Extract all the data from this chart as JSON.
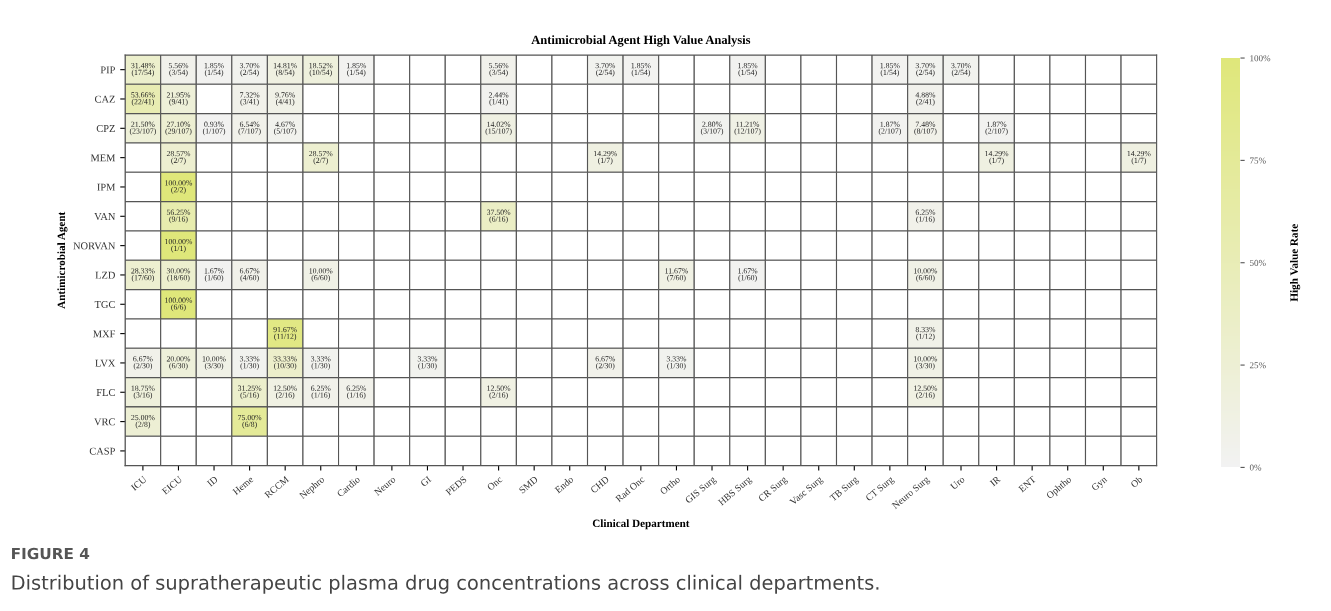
{
  "chart_data": {
    "type": "heatmap",
    "title": "Antimicrobial Agent High Value Analysis",
    "xlabel": "Clinical Department",
    "ylabel": "Antimicrobial Agent",
    "clabel": "High Value Rate",
    "categories": [
      "ICU",
      "EICU",
      "ID",
      "Heme",
      "RCCM",
      "Nephro",
      "Cardio",
      "Neuro",
      "GI",
      "PEDS",
      "Onc",
      "SMD",
      "Endo",
      "CHD",
      "Rad Onc",
      "Ortho",
      "GIS Surg",
      "HBS Surg",
      "CR Surg",
      "Vasc Surg",
      "TB Surg",
      "CT Surg",
      "Neuro Surg",
      "Uro",
      "IR",
      "ENT",
      "Ophtho",
      "Gyn",
      "Ob"
    ],
    "y_categories": [
      "PIP",
      "CAZ",
      "CPZ",
      "MEM",
      "IPM",
      "VAN",
      "NORVAN",
      "LZD",
      "TGC",
      "MXF",
      "LVX",
      "FLC",
      "VRC",
      "CASP"
    ],
    "cells": [
      [
        31.48,
        5.56,
        1.85,
        3.7,
        14.81,
        18.52,
        1.85,
        null,
        null,
        null,
        5.56,
        null,
        null,
        3.7,
        1.85,
        null,
        null,
        1.85,
        null,
        null,
        null,
        1.85,
        3.7,
        3.7,
        null,
        null,
        null,
        null,
        null
      ],
      [
        53.66,
        21.95,
        null,
        7.32,
        9.76,
        null,
        null,
        null,
        null,
        null,
        2.44,
        null,
        null,
        null,
        null,
        null,
        null,
        null,
        null,
        null,
        null,
        null,
        4.88,
        null,
        null,
        null,
        null,
        null,
        null
      ],
      [
        21.5,
        27.1,
        0.93,
        6.54,
        4.67,
        null,
        null,
        null,
        null,
        null,
        14.02,
        null,
        null,
        null,
        null,
        null,
        2.8,
        11.21,
        null,
        null,
        null,
        1.87,
        7.48,
        null,
        1.87,
        null,
        null,
        null,
        null
      ],
      [
        null,
        28.57,
        null,
        null,
        null,
        28.57,
        null,
        null,
        null,
        null,
        null,
        null,
        null,
        14.29,
        null,
        null,
        null,
        null,
        null,
        null,
        null,
        null,
        null,
        null,
        14.29,
        null,
        null,
        null,
        14.29
      ],
      [
        null,
        100.0,
        null,
        null,
        null,
        null,
        null,
        null,
        null,
        null,
        null,
        null,
        null,
        null,
        null,
        null,
        null,
        null,
        null,
        null,
        null,
        null,
        null,
        null,
        null,
        null,
        null,
        null,
        null
      ],
      [
        null,
        56.25,
        null,
        null,
        null,
        null,
        null,
        null,
        null,
        null,
        37.5,
        null,
        null,
        null,
        null,
        null,
        null,
        null,
        null,
        null,
        null,
        null,
        6.25,
        null,
        null,
        null,
        null,
        null,
        null
      ],
      [
        null,
        100.0,
        null,
        null,
        null,
        null,
        null,
        null,
        null,
        null,
        null,
        null,
        null,
        null,
        null,
        null,
        null,
        null,
        null,
        null,
        null,
        null,
        null,
        null,
        null,
        null,
        null,
        null,
        null
      ],
      [
        28.33,
        30.0,
        1.67,
        6.67,
        null,
        10.0,
        null,
        null,
        null,
        null,
        null,
        null,
        null,
        null,
        null,
        11.67,
        null,
        1.67,
        null,
        null,
        null,
        null,
        10.0,
        null,
        null,
        null,
        null,
        null,
        null
      ],
      [
        null,
        100.0,
        null,
        null,
        null,
        null,
        null,
        null,
        null,
        null,
        null,
        null,
        null,
        null,
        null,
        null,
        null,
        null,
        null,
        null,
        null,
        null,
        null,
        null,
        null,
        null,
        null,
        null,
        null
      ],
      [
        null,
        null,
        null,
        null,
        91.67,
        null,
        null,
        null,
        null,
        null,
        null,
        null,
        null,
        null,
        null,
        null,
        null,
        null,
        null,
        null,
        null,
        null,
        8.33,
        null,
        null,
        null,
        null,
        null,
        null
      ],
      [
        6.67,
        20.0,
        10.0,
        3.33,
        33.33,
        3.33,
        null,
        null,
        3.33,
        null,
        null,
        null,
        null,
        6.67,
        null,
        3.33,
        null,
        null,
        null,
        null,
        null,
        null,
        10.0,
        null,
        null,
        null,
        null,
        null,
        null
      ],
      [
        18.75,
        null,
        null,
        31.25,
        12.5,
        6.25,
        6.25,
        null,
        null,
        null,
        12.5,
        null,
        null,
        null,
        null,
        null,
        null,
        null,
        null,
        null,
        null,
        null,
        12.5,
        null,
        null,
        null,
        null,
        null,
        null
      ],
      [
        25.0,
        null,
        null,
        75.0,
        null,
        null,
        null,
        null,
        null,
        null,
        null,
        null,
        null,
        null,
        null,
        null,
        null,
        null,
        null,
        null,
        null,
        null,
        null,
        null,
        null,
        null,
        null,
        null,
        null
      ],
      [
        null,
        null,
        null,
        null,
        null,
        null,
        null,
        null,
        null,
        null,
        null,
        null,
        null,
        null,
        null,
        null,
        null,
        null,
        null,
        null,
        null,
        null,
        null,
        null,
        null,
        null,
        null,
        null,
        null
      ]
    ],
    "cell_labels": [
      [
        "31.48%\n(17/54)",
        "5.56%\n(3/54)",
        "1.85%\n(1/54)",
        "3.70%\n(2/54)",
        "14.81%\n(8/54)",
        "18.52%\n(10/54)",
        "1.85%\n(1/54)",
        null,
        null,
        null,
        "5.56%\n(3/54)",
        null,
        null,
        "3.70%\n(2/54)",
        "1.85%\n(1/54)",
        null,
        null,
        "1.85%\n(1/54)",
        null,
        null,
        null,
        "1.85%\n(1/54)",
        "3.70%\n(2/54)",
        "3.70%\n(2/54)",
        null,
        null,
        null,
        null,
        null
      ],
      [
        "53.66%\n(22/41)",
        "21.95%\n(9/41)",
        null,
        "7.32%\n(3/41)",
        "9.76%\n(4/41)",
        null,
        null,
        null,
        null,
        null,
        "2.44%\n(1/41)",
        null,
        null,
        null,
        null,
        null,
        null,
        null,
        null,
        null,
        null,
        null,
        "4.88%\n(2/41)",
        null,
        null,
        null,
        null,
        null,
        null
      ],
      [
        "21.50%\n(23/107)",
        "27.10%\n(29/107)",
        "0.93%\n(1/107)",
        "6.54%\n(7/107)",
        "4.67%\n(5/107)",
        null,
        null,
        null,
        null,
        null,
        "14.02%\n(15/107)",
        null,
        null,
        null,
        null,
        null,
        "2.80%\n(3/107)",
        "11.21%\n(12/107)",
        null,
        null,
        null,
        "1.87%\n(2/107)",
        "7.48%\n(8/107)",
        null,
        "1.87%\n(2/107)",
        null,
        null,
        null,
        null
      ],
      [
        null,
        "28.57%\n(2/7)",
        null,
        null,
        null,
        "28.57%\n(2/7)",
        null,
        null,
        null,
        null,
        null,
        null,
        null,
        "14.29%\n(1/7)",
        null,
        null,
        null,
        null,
        null,
        null,
        null,
        null,
        null,
        null,
        "14.29%\n(1/7)",
        null,
        null,
        null,
        "14.29%\n(1/7)"
      ],
      [
        null,
        "100.00%\n(2/2)",
        null,
        null,
        null,
        null,
        null,
        null,
        null,
        null,
        null,
        null,
        null,
        null,
        null,
        null,
        null,
        null,
        null,
        null,
        null,
        null,
        null,
        null,
        null,
        null,
        null,
        null,
        null
      ],
      [
        null,
        "56.25%\n(9/16)",
        null,
        null,
        null,
        null,
        null,
        null,
        null,
        null,
        "37.50%\n(6/16)",
        null,
        null,
        null,
        null,
        null,
        null,
        null,
        null,
        null,
        null,
        null,
        "6.25%\n(1/16)",
        null,
        null,
        null,
        null,
        null,
        null
      ],
      [
        null,
        "100.00%\n(1/1)",
        null,
        null,
        null,
        null,
        null,
        null,
        null,
        null,
        null,
        null,
        null,
        null,
        null,
        null,
        null,
        null,
        null,
        null,
        null,
        null,
        null,
        null,
        null,
        null,
        null,
        null,
        null
      ],
      [
        "28.33%\n(17/60)",
        "30.00%\n(18/60)",
        "1.67%\n(1/60)",
        "6.67%\n(4/60)",
        null,
        "10.00%\n(6/60)",
        null,
        null,
        null,
        null,
        null,
        null,
        null,
        null,
        null,
        "11.67%\n(7/60)",
        null,
        "1.67%\n(1/60)",
        null,
        null,
        null,
        null,
        "10.00%\n(6/60)",
        null,
        null,
        null,
        null,
        null,
        null
      ],
      [
        null,
        "100.00%\n(6/6)",
        null,
        null,
        null,
        null,
        null,
        null,
        null,
        null,
        null,
        null,
        null,
        null,
        null,
        null,
        null,
        null,
        null,
        null,
        null,
        null,
        null,
        null,
        null,
        null,
        null,
        null,
        null
      ],
      [
        null,
        null,
        null,
        null,
        "91.67%\n(11/12)",
        null,
        null,
        null,
        null,
        null,
        null,
        null,
        null,
        null,
        null,
        null,
        null,
        null,
        null,
        null,
        null,
        null,
        "8.33%\n(1/12)",
        null,
        null,
        null,
        null,
        null,
        null
      ],
      [
        "6.67%\n(2/30)",
        "20.00%\n(6/30)",
        "10.00%\n(3/30)",
        "3.33%\n(1/30)",
        "33.33%\n(10/30)",
        "3.33%\n(1/30)",
        null,
        null,
        "3.33%\n(1/30)",
        null,
        null,
        null,
        null,
        "6.67%\n(2/30)",
        null,
        "3.33%\n(1/30)",
        null,
        null,
        null,
        null,
        null,
        null,
        "10.00%\n(3/30)",
        null,
        null,
        null,
        null,
        null,
        null
      ],
      [
        "18.75%\n(3/16)",
        null,
        null,
        "31.25%\n(5/16)",
        "12.50%\n(2/16)",
        "6.25%\n(1/16)",
        "6.25%\n(1/16)",
        null,
        null,
        null,
        "12.50%\n(2/16)",
        null,
        null,
        null,
        null,
        null,
        null,
        null,
        null,
        null,
        null,
        null,
        "12.50%\n(2/16)",
        null,
        null,
        null,
        null,
        null,
        null
      ],
      [
        "25.00%\n(2/8)",
        null,
        null,
        "75.00%\n(6/8)",
        null,
        null,
        null,
        null,
        null,
        null,
        null,
        null,
        null,
        null,
        null,
        null,
        null,
        null,
        null,
        null,
        null,
        null,
        null,
        null,
        null,
        null,
        null,
        null,
        null
      ],
      [
        null,
        null,
        null,
        null,
        null,
        null,
        null,
        null,
        null,
        null,
        null,
        null,
        null,
        null,
        null,
        null,
        null,
        null,
        null,
        null,
        null,
        null,
        null,
        null,
        null,
        null,
        null,
        null,
        null
      ]
    ],
    "colors": [
      "#f2f2f2",
      "#dfe77a"
    ],
    "clim": [
      0,
      100
    ],
    "cticks": [
      {
        "value": 0,
        "label": "0%"
      },
      {
        "value": 25,
        "label": "25%"
      },
      {
        "value": 50,
        "label": "50%"
      },
      {
        "value": 75,
        "label": "75%"
      },
      {
        "value": 100,
        "label": "100%"
      }
    ],
    "annotations": [
      "FIGURE 4",
      "Distribution of supratherapeutic plasma drug concentrations across clinical departments."
    ]
  }
}
